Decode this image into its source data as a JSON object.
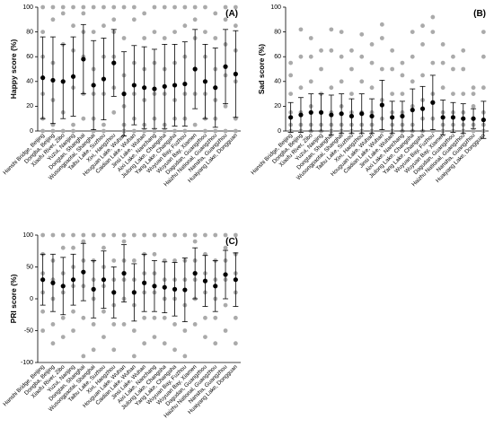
{
  "chart_data": [
    {
      "type": "errorbar",
      "label": "(A)",
      "ylabel": "Happy score (%)",
      "ylim": [
        0,
        100
      ],
      "yticks": [
        0,
        20,
        40,
        60,
        80,
        100
      ],
      "color": "#000000",
      "point_color": "#aaaaaa",
      "categories": [
        "Hanshi Bridge, Beijing",
        "Dongba, Beijing",
        "Xiaofu River, Zibo",
        "Yuzui, Nanjing",
        "Dongtan, Shanghai",
        "Wusongpaotai, Shanghai",
        "Taihu Lake, Suzhou",
        "Xixi, Hangzhou",
        "Houguan Lake, Wuhan",
        "Caidian Lake, Wuhan",
        "Jinsi Lake, Wuhan",
        "Aixi Lake, Nanchang",
        "Jiulong Lake, Changsha",
        "Yang Lake, Changsha",
        "Wuyuan Bay, Fuzhou",
        "Wuyuan Bay, Xiamen",
        "Dagudan, Guangzhou",
        "Haizhu National, Guangzhou",
        "Nansha, Guangzhou",
        "Huaiyang Lake, Dongguan"
      ],
      "values": [
        43,
        41,
        40,
        44,
        58,
        37,
        42,
        55,
        30,
        37,
        35,
        34,
        36,
        37,
        38,
        50,
        40,
        35,
        52,
        46
      ],
      "errors": [
        33,
        35,
        30,
        32,
        28,
        36,
        33,
        27,
        34,
        32,
        33,
        32,
        34,
        33,
        34,
        32,
        30,
        32,
        30,
        35
      ],
      "points": [
        [
          0,
          10,
          30,
          60,
          80,
          100
        ],
        [
          0,
          5,
          25,
          55,
          90,
          100
        ],
        [
          0,
          15,
          40,
          70,
          95,
          100
        ],
        [
          0,
          5,
          35,
          65,
          85,
          100
        ],
        [
          10,
          30,
          60,
          80,
          95,
          100
        ],
        [
          0,
          10,
          30,
          50,
          80,
          100
        ],
        [
          0,
          5,
          30,
          60,
          85,
          100
        ],
        [
          15,
          35,
          60,
          80,
          90,
          100
        ],
        [
          0,
          5,
          20,
          45,
          75,
          100
        ],
        [
          0,
          10,
          30,
          55,
          90,
          100
        ],
        [
          0,
          5,
          25,
          50,
          75,
          95
        ],
        [
          0,
          10,
          30,
          55,
          80,
          100
        ],
        [
          0,
          5,
          30,
          50,
          75,
          100
        ],
        [
          0,
          10,
          25,
          55,
          80,
          100
        ],
        [
          0,
          10,
          30,
          60,
          85,
          100
        ],
        [
          5,
          30,
          50,
          75,
          90,
          100
        ],
        [
          0,
          10,
          30,
          60,
          80,
          100
        ],
        [
          0,
          10,
          25,
          50,
          75,
          95
        ],
        [
          0,
          20,
          45,
          70,
          90,
          100
        ],
        [
          0,
          10,
          40,
          65,
          85,
          100
        ]
      ]
    },
    {
      "type": "errorbar",
      "label": "(B)",
      "ylabel": "Sad score (%)",
      "ylim": [
        0,
        100
      ],
      "yticks": [
        0,
        20,
        40,
        60,
        80,
        100
      ],
      "color": "#000000",
      "point_color": "#aaaaaa",
      "categories": [
        "Hanshi Bridge, Beijing",
        "Dongba, Beijing",
        "Xiaofu River, Zibo",
        "Yuzui, Nanjing",
        "Dongtan, Shanghai",
        "Wusongpaotai, Shanghai",
        "Taihu Lake, Suzhou",
        "Xixi, Hangzhou",
        "Houguan Lake, Wuhan",
        "Caidian Lake, Wuhan",
        "Jinsi Lake, Wuhan",
        "Aixi Lake, Nanchang",
        "Jiulong Lake, Changsha",
        "Yang Lake, Changsha",
        "Wuyuan Bay, Fuzhou",
        "Wuyuan Bay, Xiamen",
        "Dagudan, Guangzhou",
        "Haizhu National, Guangzhou",
        "Nansha, Guangzhou",
        "Huaiyang Lake, Dongguan"
      ],
      "values": [
        11,
        13,
        15,
        15,
        13,
        14,
        12,
        14,
        12,
        21,
        11,
        12,
        17,
        18,
        23,
        11,
        11,
        10,
        10,
        9
      ],
      "errors": [
        12,
        14,
        15,
        15,
        16,
        16,
        14,
        16,
        14,
        20,
        13,
        12,
        17,
        18,
        22,
        14,
        12,
        12,
        8,
        15
      ],
      "points": [
        [
          0,
          5,
          15,
          30,
          45,
          55
        ],
        [
          0,
          5,
          15,
          35,
          60,
          82
        ],
        [
          0,
          5,
          20,
          40,
          60,
          75
        ],
        [
          0,
          5,
          15,
          30,
          50,
          65
        ],
        [
          0,
          5,
          15,
          35,
          65,
          82
        ],
        [
          0,
          5,
          20,
          40,
          60,
          80
        ],
        [
          0,
          5,
          15,
          30,
          50,
          65
        ],
        [
          0,
          5,
          15,
          40,
          60,
          78
        ],
        [
          0,
          5,
          15,
          35,
          55,
          70
        ],
        [
          0,
          10,
          25,
          50,
          75,
          86
        ],
        [
          0,
          5,
          15,
          30,
          50,
          65
        ],
        [
          0,
          5,
          15,
          30,
          45,
          55
        ],
        [
          0,
          5,
          20,
          40,
          60,
          80
        ],
        [
          0,
          10,
          25,
          45,
          70,
          85
        ],
        [
          0,
          10,
          30,
          55,
          80,
          92
        ],
        [
          0,
          5,
          15,
          35,
          55,
          70
        ],
        [
          0,
          5,
          15,
          30,
          50,
          60
        ],
        [
          0,
          5,
          15,
          30,
          50,
          65
        ],
        [
          0,
          5,
          10,
          20,
          30,
          35
        ],
        [
          0,
          5,
          15,
          35,
          60,
          80
        ]
      ]
    },
    {
      "type": "errorbar",
      "label": "(C)",
      "ylabel": "PRI score (%)",
      "ylim": [
        -100,
        100
      ],
      "yticks": [
        -100,
        -50,
        0,
        50,
        100
      ],
      "color": "#000000",
      "point_color": "#aaaaaa",
      "categories": [
        "Hanshi Bridge, Beijing",
        "Dongba, Beijing",
        "Xiaofu River, Zibo",
        "Yuzui, Nanjing",
        "Dongtan, Shanghai",
        "Wusongpaotai, Shanghai",
        "Taihu Lake, Suzhou",
        "Xixi, Hangzhou",
        "Houguan Lake, Wuhan",
        "Caidian Lake, Wuhan",
        "Jinsi Lake, Wuhan",
        "Aixi Lake, Nanchang",
        "Jiulong Lake, Changsha",
        "Yang Lake, Changsha",
        "Wuyuan Bay, Fuzhou",
        "Wuyuan Bay, Xiamen",
        "Dagudan, Guangzhou",
        "Haizhu National, Guangzhou",
        "Nansha, Guangzhou",
        "Huaiyang Lake, Dongguan"
      ],
      "values": [
        30,
        25,
        20,
        30,
        42,
        15,
        30,
        10,
        40,
        10,
        25,
        20,
        18,
        15,
        14,
        40,
        28,
        20,
        38,
        30
      ],
      "errors": [
        40,
        45,
        45,
        40,
        45,
        45,
        45,
        40,
        45,
        45,
        45,
        40,
        40,
        42,
        50,
        40,
        40,
        40,
        38,
        42
      ],
      "points": [
        [
          -50,
          -20,
          10,
          40,
          70,
          100
        ],
        [
          -70,
          -40,
          0,
          30,
          60,
          100
        ],
        [
          -60,
          -30,
          10,
          40,
          80,
          100
        ],
        [
          -50,
          -20,
          20,
          50,
          80,
          100
        ],
        [
          -90,
          -30,
          20,
          60,
          90,
          100
        ],
        [
          -80,
          -40,
          0,
          30,
          60,
          100
        ],
        [
          -60,
          -20,
          20,
          50,
          80,
          100
        ],
        [
          -80,
          -40,
          -10,
          30,
          60,
          100
        ],
        [
          -40,
          0,
          30,
          60,
          90,
          100
        ],
        [
          -90,
          -50,
          -10,
          30,
          60,
          100
        ],
        [
          -70,
          -30,
          10,
          40,
          70,
          100
        ],
        [
          -60,
          -30,
          10,
          40,
          70,
          100
        ],
        [
          -70,
          -30,
          0,
          30,
          60,
          100
        ],
        [
          -80,
          -40,
          0,
          30,
          60,
          100
        ],
        [
          -90,
          -50,
          -10,
          30,
          60,
          100
        ],
        [
          -40,
          0,
          30,
          60,
          90,
          100
        ],
        [
          -60,
          -30,
          10,
          40,
          70,
          100
        ],
        [
          -70,
          -30,
          0,
          30,
          60,
          100
        ],
        [
          -50,
          -10,
          30,
          60,
          80,
          100
        ],
        [
          -70,
          -30,
          10,
          40,
          70,
          100
        ]
      ]
    }
  ]
}
